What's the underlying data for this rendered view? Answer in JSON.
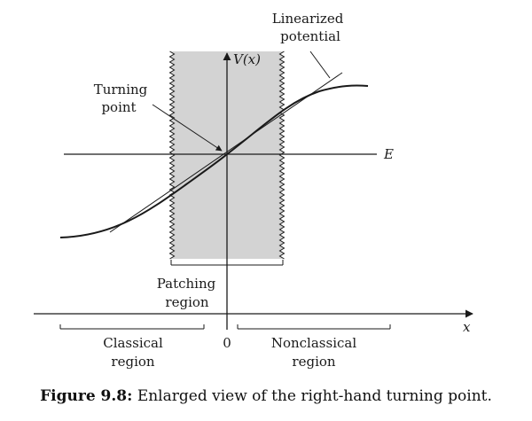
{
  "labels": {
    "linearized_line1": "Linearized",
    "linearized_line2": "potential",
    "v_axis": "V(x)",
    "turning_line1": "Turning",
    "turning_line2": "point",
    "energy": "E",
    "patching_line1": "Patching",
    "patching_line2": "region",
    "x_axis": "x",
    "zero": "0",
    "classical_line1": "Classical",
    "classical_line2": "region",
    "nonclassical_line1": "Nonclassical",
    "nonclassical_line2": "region"
  },
  "caption": {
    "prefix": "Figure 9.8:",
    "text": " Enlarged view of the right-hand turning point."
  },
  "colors": {
    "patching_fill": "#d3d3d3",
    "ink": "#1a1a1a"
  }
}
